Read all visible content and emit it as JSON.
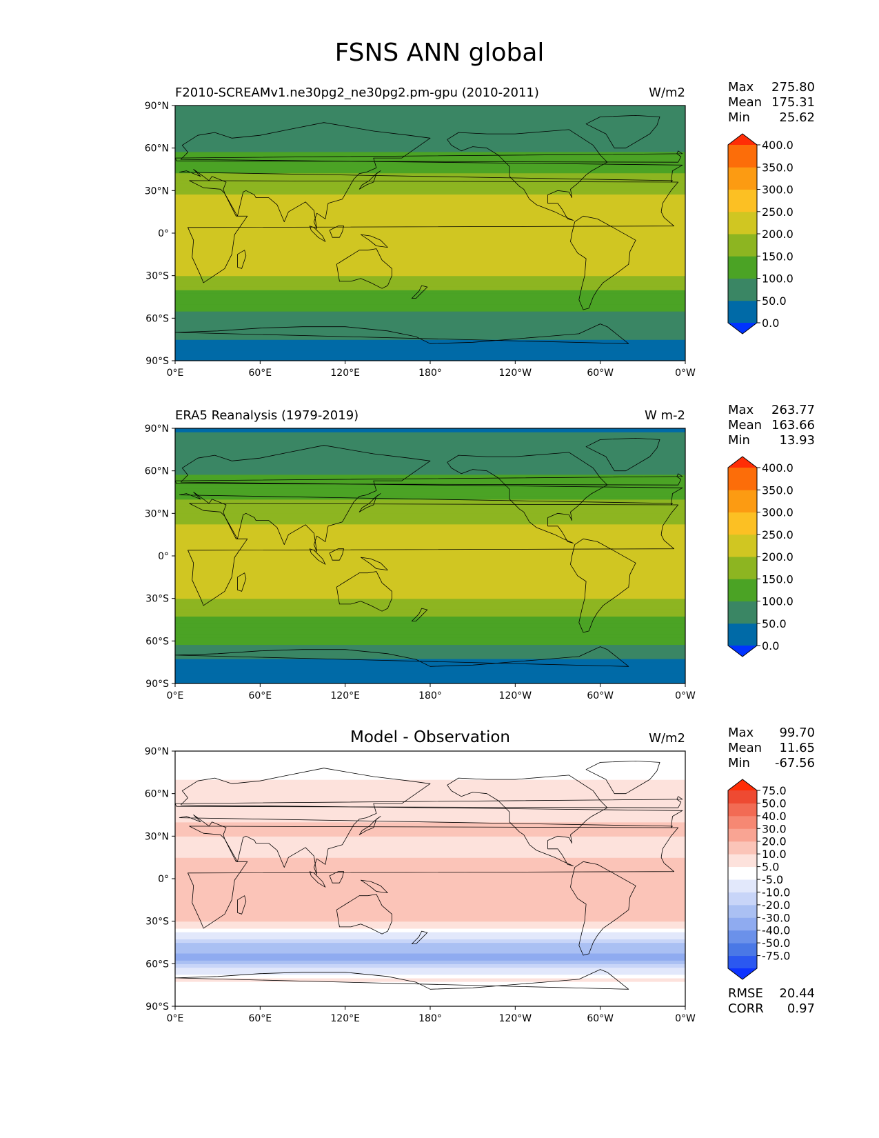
{
  "figure": {
    "title": "FSNS ANN global"
  },
  "colors": {
    "abs_levels": [
      "#0033ff",
      "#006aa7",
      "#3a8664",
      "#4ba325",
      "#8db521",
      "#d0c622",
      "#fcc023",
      "#fc9b12",
      "#fc6d09",
      "#ff2d06"
    ],
    "diff_levels": [
      "#0d33ff",
      "#2b58f0",
      "#4a78e6",
      "#6b91ea",
      "#8fabf0",
      "#aac0f3",
      "#c8d5f8",
      "#e2e8fb",
      "#ffffff",
      "#fde2dc",
      "#fbc4b8",
      "#f9a493",
      "#f68873",
      "#f26b54",
      "#ee4a32",
      "#ff2d06"
    ],
    "coast": "#000000"
  },
  "axes": {
    "lat_ticks": [
      "90°N",
      "60°N",
      "30°N",
      "0°",
      "30°S",
      "60°S",
      "90°S"
    ],
    "lon_ticks": [
      "0°E",
      "60°E",
      "120°E",
      "180°",
      "120°W",
      "60°W",
      "0°W"
    ]
  },
  "chart_data": [
    {
      "type": "heatmap",
      "title": "F2010-SCREAMv1.ne30pg2_ne30pg2.pm-gpu (2010-2011)",
      "units": "W/m2",
      "stats": {
        "max": "275.80",
        "mean": "175.31",
        "min": "25.62"
      },
      "colorbar_levels": [
        0,
        50,
        100,
        150,
        200,
        250,
        300,
        350,
        400
      ],
      "colorbar_labels": [
        "400.0",
        "350.0",
        "300.0",
        "250.0",
        "200.0",
        "150.0",
        "100.0",
        "50.0",
        "0.0"
      ],
      "xlim": [
        0,
        360
      ],
      "ylim": [
        -90,
        90
      ],
      "zonal_profile": {
        "lat": [
          -90,
          -75,
          -70,
          -65,
          -60,
          -50,
          -40,
          -30,
          -20,
          -10,
          0,
          10,
          20,
          30,
          40,
          50,
          60,
          70,
          80,
          90
        ],
        "value": [
          40,
          45,
          75,
          90,
          90,
          110,
          150,
          200,
          235,
          250,
          240,
          245,
          225,
          190,
          160,
          120,
          95,
          80,
          75,
          60
        ]
      }
    },
    {
      "type": "heatmap",
      "title": "ERA5 Reanalysis (1979-2019)",
      "units": "W m-2",
      "stats": {
        "max": "263.77",
        "mean": "163.66",
        "min": "13.93"
      },
      "colorbar_levels": [
        0,
        50,
        100,
        150,
        200,
        250,
        300,
        350,
        400
      ],
      "colorbar_labels": [
        "400.0",
        "350.0",
        "300.0",
        "250.0",
        "200.0",
        "150.0",
        "100.0",
        "50.0",
        "0.0"
      ],
      "xlim": [
        0,
        360
      ],
      "ylim": [
        -90,
        90
      ],
      "zonal_profile": {
        "lat": [
          -90,
          -75,
          -70,
          -65,
          -60,
          -50,
          -40,
          -30,
          -20,
          -10,
          0,
          10,
          20,
          30,
          40,
          50,
          60,
          70,
          80,
          90
        ],
        "value": [
          30,
          35,
          75,
          95,
          105,
          130,
          160,
          200,
          220,
          225,
          220,
          225,
          210,
          180,
          150,
          120,
          95,
          75,
          60,
          45
        ]
      }
    },
    {
      "type": "heatmap",
      "title": "Model - Observation",
      "units": "W/m2",
      "stats": {
        "max": "99.70",
        "mean": "11.65",
        "min": "-67.56"
      },
      "colorbar_levels": [
        -75,
        -50,
        -40,
        -30,
        -20,
        -10,
        -5,
        5,
        10,
        20,
        30,
        40,
        50,
        75
      ],
      "colorbar_labels": [
        "75.0",
        "50.0",
        "40.0",
        "30.0",
        "20.0",
        "10.0",
        "5.0",
        "-5.0",
        "-10.0",
        "-20.0",
        "-30.0",
        "-40.0",
        "-50.0",
        "-75.0"
      ],
      "xlim": [
        0,
        360
      ],
      "ylim": [
        -90,
        90
      ],
      "metrics": {
        "rmse": "20.44",
        "corr": "0.97"
      },
      "zonal_profile": {
        "lat": [
          -90,
          -75,
          -70,
          -65,
          -60,
          -55,
          -50,
          -45,
          -40,
          -30,
          -20,
          -10,
          0,
          10,
          20,
          30,
          40,
          50,
          60,
          70,
          80,
          90
        ],
        "value": [
          8,
          8,
          12,
          2,
          -12,
          -25,
          -18,
          -8,
          2,
          20,
          25,
          20,
          30,
          22,
          18,
          20,
          20,
          18,
          15,
          10,
          8,
          6
        ]
      }
    }
  ],
  "stat_labels": {
    "max": "Max",
    "mean": "Mean",
    "min": "Min",
    "rmse": "RMSE",
    "corr": "CORR"
  }
}
